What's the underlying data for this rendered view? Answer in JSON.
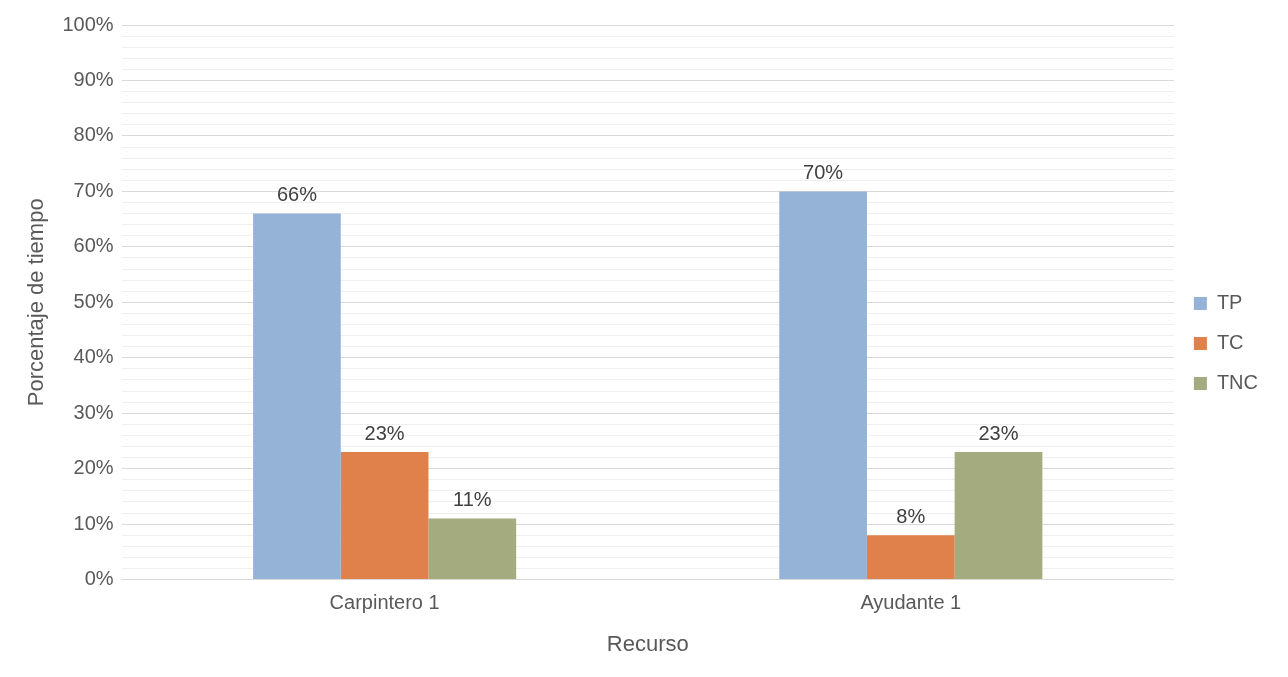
{
  "chart_data": {
    "type": "bar",
    "xlabel": "Recurso",
    "ylabel": "Porcentaje de tiempo",
    "categories": [
      "Carpintero 1",
      "Ayudante 1"
    ],
    "series": [
      {
        "name": "TP",
        "color": "#95b3d7",
        "values": [
          66,
          70
        ],
        "value_labels": [
          "66%",
          "70%"
        ]
      },
      {
        "name": "TC",
        "color": "#e0804a",
        "values": [
          23,
          8
        ],
        "value_labels": [
          "23%",
          "8%"
        ]
      },
      {
        "name": "TNC",
        "color": "#a3ab7f",
        "values": [
          11,
          23
        ],
        "value_labels": [
          "11%",
          "23%"
        ]
      }
    ],
    "ylim": [
      0,
      100
    ],
    "yticks": [
      {
        "value": 0,
        "label": "0%"
      },
      {
        "value": 2,
        "label": null
      },
      {
        "value": 4,
        "label": null
      },
      {
        "value": 6,
        "label": null
      },
      {
        "value": 8,
        "label": null
      },
      {
        "value": 10,
        "label": "10%"
      },
      {
        "value": 12,
        "label": null
      },
      {
        "value": 14,
        "label": null
      },
      {
        "value": 16,
        "label": null
      },
      {
        "value": 18,
        "label": null
      },
      {
        "value": 20,
        "label": "20%"
      },
      {
        "value": 22,
        "label": null
      },
      {
        "value": 24,
        "label": null
      },
      {
        "value": 26,
        "label": null
      },
      {
        "value": 28,
        "label": null
      },
      {
        "value": 30,
        "label": "30%"
      },
      {
        "value": 32,
        "label": null
      },
      {
        "value": 34,
        "label": null
      },
      {
        "value": 36,
        "label": null
      },
      {
        "value": 38,
        "label": null
      },
      {
        "value": 40,
        "label": "40%"
      },
      {
        "value": 42,
        "label": null
      },
      {
        "value": 44,
        "label": null
      },
      {
        "value": 46,
        "label": null
      },
      {
        "value": 48,
        "label": null
      },
      {
        "value": 50,
        "label": "50%"
      },
      {
        "value": 52,
        "label": null
      },
      {
        "value": 54,
        "label": null
      },
      {
        "value": 56,
        "label": null
      },
      {
        "value": 58,
        "label": null
      },
      {
        "value": 60,
        "label": "60%"
      },
      {
        "value": 62,
        "label": null
      },
      {
        "value": 64,
        "label": null
      },
      {
        "value": 66,
        "label": null
      },
      {
        "value": 68,
        "label": null
      },
      {
        "value": 70,
        "label": "70%"
      },
      {
        "value": 72,
        "label": null
      },
      {
        "value": 74,
        "label": null
      },
      {
        "value": 76,
        "label": null
      },
      {
        "value": 78,
        "label": null
      },
      {
        "value": 80,
        "label": "80%"
      },
      {
        "value": 82,
        "label": null
      },
      {
        "value": 84,
        "label": null
      },
      {
        "value": 86,
        "label": null
      },
      {
        "value": 88,
        "label": null
      },
      {
        "value": 90,
        "label": "90%"
      },
      {
        "value": 92,
        "label": null
      },
      {
        "value": 94,
        "label": null
      },
      {
        "value": 96,
        "label": null
      },
      {
        "value": 98,
        "label": null
      },
      {
        "value": 100,
        "label": "100%"
      }
    ],
    "grid": "y",
    "legend": "right"
  }
}
